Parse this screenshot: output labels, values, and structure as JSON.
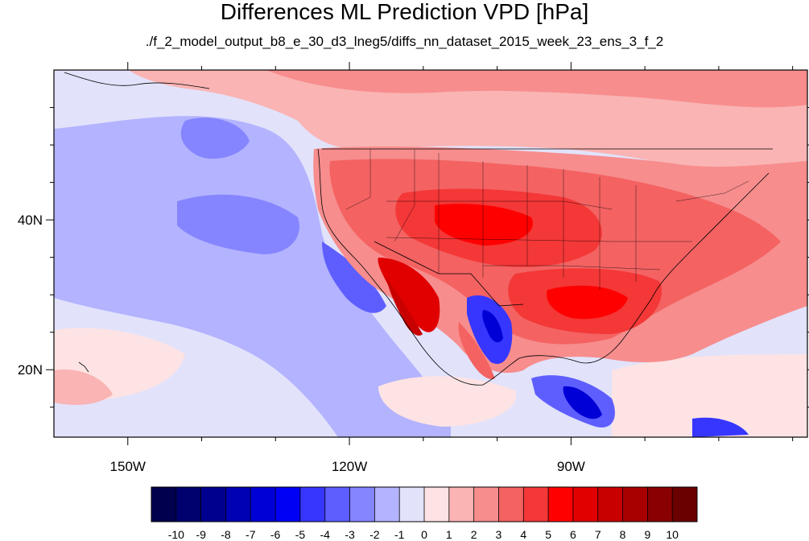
{
  "title": "Differences ML Prediction VPD [hPa]",
  "subtitle": "./f_2_model_output_b8_e_30_d3_lneg5/diffs_nn_dataset_2015_week_23_ens_3_f_2",
  "map": {
    "lon_range": [
      -160,
      -58
    ],
    "lat_range": [
      11,
      60
    ],
    "x_ticks": [
      {
        "lon": -150,
        "label": "150W"
      },
      {
        "lon": -120,
        "label": "120W"
      },
      {
        "lon": -90,
        "label": "90W"
      }
    ],
    "y_ticks": [
      {
        "lat": 40,
        "label": "40N"
      },
      {
        "lat": 20,
        "label": "20N"
      }
    ]
  },
  "colorbar": {
    "labels": [
      "-10",
      "-9",
      "-8",
      "-7",
      "-6",
      "-5",
      "-4",
      "-3",
      "-2",
      "-1",
      "0",
      "1",
      "2",
      "3",
      "4",
      "5",
      "6",
      "7",
      "8",
      "9",
      "10"
    ],
    "colors": [
      "#00004f",
      "#00006e",
      "#00008f",
      "#0000b4",
      "#0000d6",
      "#0000f5",
      "#3636ff",
      "#5e5eff",
      "#8585ff",
      "#b3b3ff",
      "#e2e2fb",
      "#fde3e3",
      "#fab4b4",
      "#f78d8d",
      "#f46262",
      "#f43737",
      "#ff0000",
      "#e00000",
      "#c80000",
      "#a80000",
      "#8a0000",
      "#6a0000"
    ]
  },
  "fields": {
    "ocean_base": "#e2e2fb",
    "land_warm": "#fab4b4",
    "strong_red": "#f43737",
    "pure_red": "#ff0000",
    "deep_red": "#e00000",
    "pale_red": "#fde3e3",
    "mid_blue": "#8585ff",
    "light_blue": "#b3b3ff",
    "dark_blue": "#0000d6"
  }
}
